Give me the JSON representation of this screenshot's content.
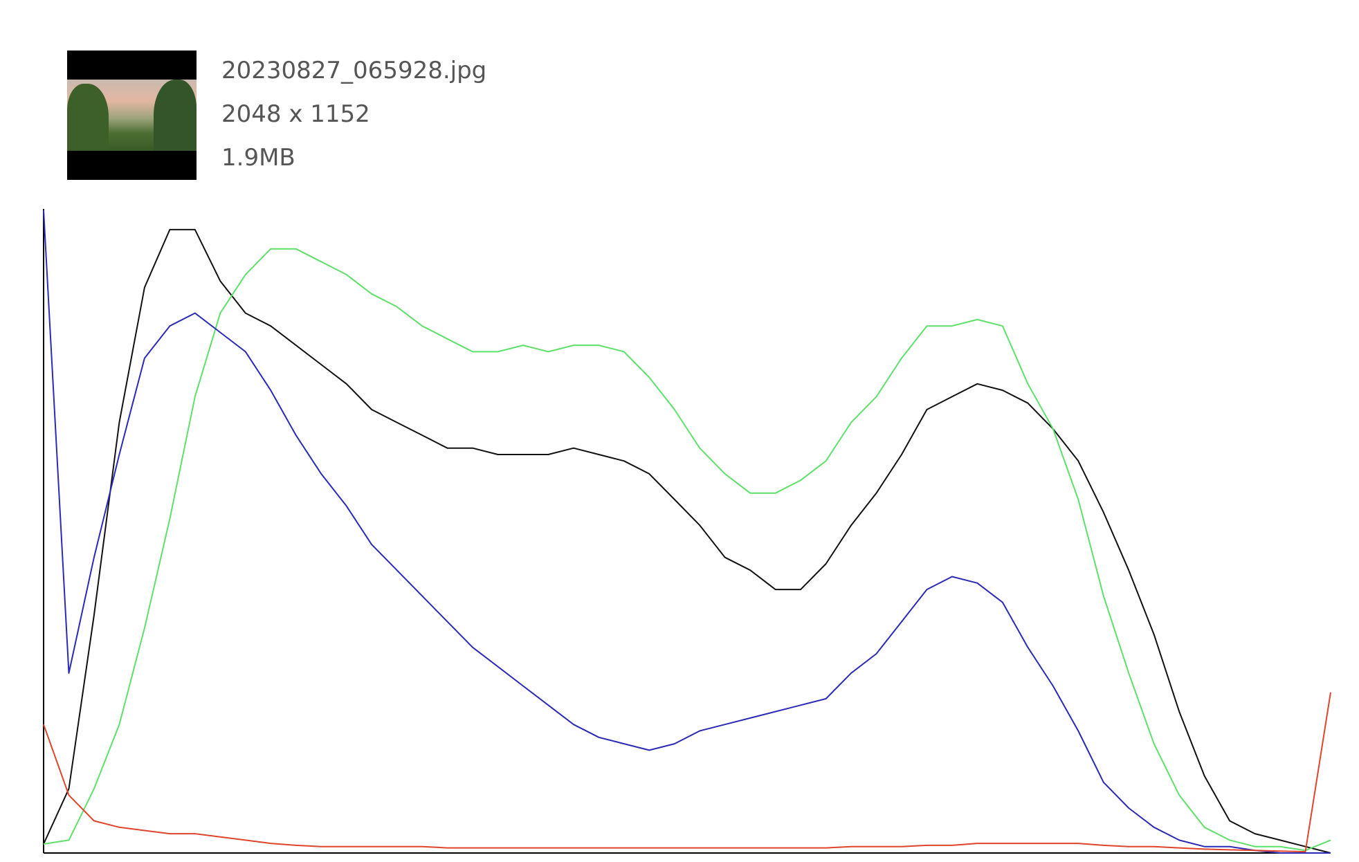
{
  "file": {
    "name": "20230827_065928.jpg",
    "dimensions": "2048 x 1152",
    "size": "1.9MB"
  },
  "chart_data": {
    "type": "line",
    "x": [
      0,
      5,
      10,
      15,
      20,
      25,
      30,
      35,
      40,
      45,
      50,
      55,
      60,
      65,
      70,
      75,
      80,
      85,
      90,
      95,
      100,
      105,
      110,
      115,
      120,
      125,
      130,
      135,
      140,
      145,
      150,
      155,
      160,
      165,
      170,
      175,
      180,
      185,
      190,
      195,
      200,
      205,
      210,
      215,
      220,
      225,
      230,
      235,
      240,
      245,
      250,
      255
    ],
    "xlim": [
      0,
      255
    ],
    "ylim": [
      0,
      100
    ],
    "series": [
      {
        "color": "#111111",
        "values": [
          1.4,
          10,
          37,
          67,
          88,
          97,
          97,
          89,
          84,
          82,
          79,
          76,
          73,
          69,
          67,
          65,
          63,
          63,
          62,
          62,
          62,
          63,
          62,
          61,
          59,
          55,
          51,
          46,
          44,
          41,
          41,
          45,
          51,
          56,
          62,
          69,
          71,
          73,
          72,
          70,
          66,
          61,
          53,
          44,
          34,
          22,
          12,
          5,
          3,
          2,
          1,
          0
        ]
      },
      {
        "color": "#5ee06a",
        "values": [
          1.4,
          2,
          10,
          20,
          35,
          52,
          71,
          84,
          90,
          94,
          94,
          92,
          90,
          87,
          85,
          82,
          80,
          78,
          78,
          79,
          78,
          79,
          79,
          78,
          74,
          69,
          63,
          59,
          56,
          56,
          58,
          61,
          67,
          71,
          77,
          82,
          82,
          83,
          82,
          73,
          66,
          55,
          40,
          28,
          17,
          9,
          4,
          2,
          1,
          1,
          0.4,
          2
        ]
      },
      {
        "color": "#2a2ab8",
        "values": [
          100,
          28,
          46,
          62,
          77,
          82,
          84,
          81,
          78,
          72,
          65,
          59,
          54,
          48,
          44,
          40,
          36,
          32,
          29,
          26,
          23,
          20,
          18,
          17,
          16,
          17,
          19,
          20,
          21,
          22,
          23,
          24,
          28,
          31,
          36,
          41,
          43,
          42,
          39,
          32,
          26,
          19,
          11,
          7,
          4,
          2,
          1,
          1,
          0.4,
          0,
          0,
          0
        ]
      },
      {
        "color": "#e0442a",
        "values": [
          20,
          9,
          5,
          4,
          3.5,
          3,
          3,
          2.5,
          2,
          1.5,
          1.2,
          1,
          1,
          1,
          1,
          1,
          0.8,
          0.8,
          0.8,
          0.8,
          0.8,
          0.8,
          0.8,
          0.8,
          0.8,
          0.8,
          0.8,
          0.8,
          0.8,
          0.8,
          0.8,
          0.8,
          1,
          1,
          1,
          1.2,
          1.2,
          1.5,
          1.5,
          1.5,
          1.5,
          1.5,
          1.2,
          1,
          1,
          0.8,
          0.6,
          0.5,
          0.4,
          0.3,
          0.2,
          25
        ]
      }
    ]
  }
}
